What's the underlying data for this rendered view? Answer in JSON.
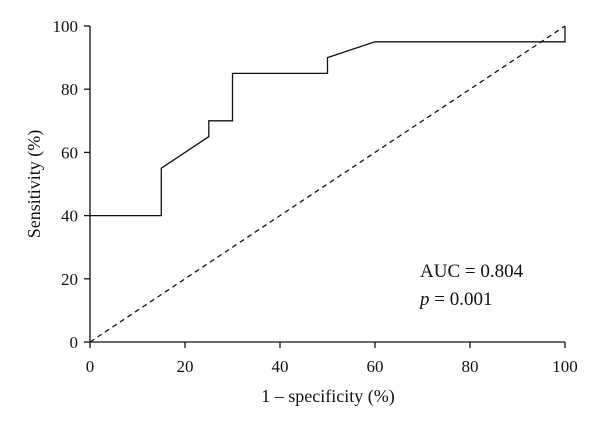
{
  "chart_data": {
    "type": "line",
    "title": "",
    "xlabel": "1 – specificity (%)",
    "ylabel": "Sensitivity (%)",
    "xlim": [
      0,
      100
    ],
    "ylim": [
      0,
      100
    ],
    "x_ticks": [
      "0",
      "20",
      "40",
      "60",
      "80",
      "100"
    ],
    "y_ticks": [
      "0",
      "20",
      "40",
      "60",
      "80",
      "100"
    ],
    "grid": false,
    "legend": "none",
    "series": [
      {
        "style": "solid",
        "color": "#111111",
        "points": [
          [
            0,
            40
          ],
          [
            15,
            40
          ],
          [
            15,
            55
          ],
          [
            25,
            65
          ],
          [
            25,
            70
          ],
          [
            30,
            70
          ],
          [
            30,
            85
          ],
          [
            50,
            85
          ],
          [
            50,
            90
          ],
          [
            60,
            95
          ],
          [
            100,
            95
          ],
          [
            100,
            100
          ]
        ]
      },
      {
        "style": "dashed",
        "color": "#111111",
        "points": [
          [
            0,
            0
          ],
          [
            100,
            100
          ]
        ]
      }
    ],
    "annotations": {
      "auc": "AUC = 0.804",
      "p_symbol": "p",
      "p_value": " = 0.001"
    }
  }
}
